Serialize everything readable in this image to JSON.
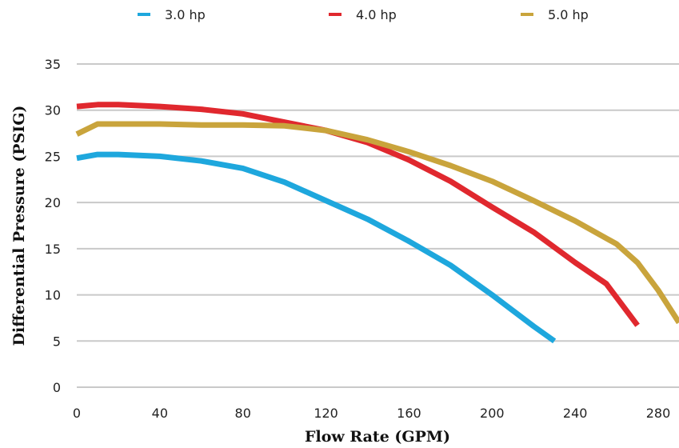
{
  "chart_data": {
    "type": "line",
    "xlabel": "Flow Rate  (GPM)",
    "ylabel": "Differential Pressure (PSIG)",
    "xlim": [
      0,
      290
    ],
    "ylim": [
      0,
      35
    ],
    "xticks": [
      0,
      40,
      80,
      120,
      160,
      200,
      240,
      280
    ],
    "yticks": [
      0,
      5,
      10,
      15,
      20,
      25,
      30,
      35
    ],
    "grid": true,
    "legend_position": "top",
    "series": [
      {
        "name": "3.0 hp",
        "color": "#1ea7dd",
        "x": [
          0,
          10,
          20,
          40,
          60,
          80,
          100,
          120,
          140,
          160,
          180,
          200,
          220,
          230
        ],
        "y": [
          24.8,
          25.2,
          25.2,
          25.0,
          24.5,
          23.7,
          22.2,
          20.2,
          18.2,
          15.8,
          13.2,
          10.0,
          6.6,
          5.0
        ]
      },
      {
        "name": "4.0 hp",
        "color": "#e0282e",
        "x": [
          0,
          10,
          20,
          40,
          60,
          80,
          100,
          120,
          140,
          160,
          180,
          200,
          220,
          240,
          255,
          270
        ],
        "y": [
          30.4,
          30.6,
          30.6,
          30.4,
          30.1,
          29.6,
          28.7,
          27.8,
          26.5,
          24.6,
          22.3,
          19.5,
          16.8,
          13.5,
          11.2,
          6.7
        ]
      },
      {
        "name": "5.0 hp",
        "color": "#c9a43c",
        "x": [
          0,
          10,
          20,
          40,
          60,
          80,
          100,
          120,
          140,
          160,
          180,
          200,
          220,
          240,
          260,
          270,
          280,
          290
        ],
        "y": [
          27.4,
          28.5,
          28.5,
          28.5,
          28.4,
          28.4,
          28.3,
          27.8,
          26.8,
          25.5,
          24.0,
          22.3,
          20.2,
          18.0,
          15.5,
          13.5,
          10.5,
          7.0
        ]
      }
    ]
  }
}
